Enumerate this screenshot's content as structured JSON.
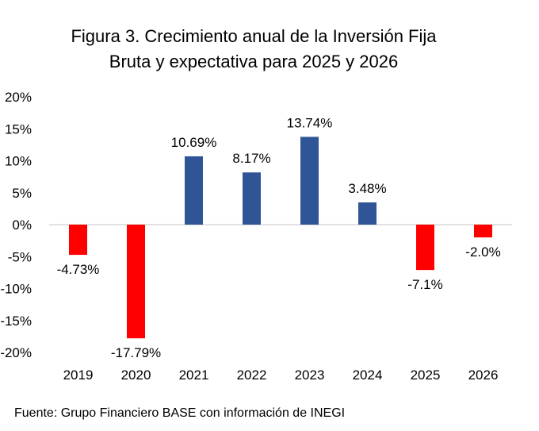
{
  "chart_data": {
    "type": "bar",
    "title_line1": "Figura 3. Crecimiento anual de la Inversión Fija",
    "title_line2": "Bruta y expectativa para 2025 y 2026",
    "categories": [
      "2019",
      "2020",
      "2021",
      "2022",
      "2023",
      "2024",
      "2025",
      "2026"
    ],
    "values": [
      -4.73,
      -17.79,
      10.69,
      8.17,
      13.74,
      3.48,
      -7.1,
      -2.0
    ],
    "data_labels": [
      "-4.73%",
      "-17.79%",
      "10.69%",
      "8.17%",
      "13.74%",
      "3.48%",
      "-7.1%",
      "-2.0%"
    ],
    "ylim": [
      -20,
      20
    ],
    "yticks": [
      20,
      15,
      10,
      5,
      0,
      -5,
      -10,
      -15,
      -20
    ],
    "ytick_labels": [
      "20%",
      "15%",
      "10%",
      "5%",
      "0%",
      "-5%",
      "-10%",
      "-15%",
      "-20%"
    ],
    "xlabel": "",
    "ylabel": "",
    "grid": false,
    "colors": {
      "positive": "#2F5597",
      "negative": "#FF0000",
      "axis": "#D9D9D9"
    }
  },
  "source": "Fuente: Grupo Financiero BASE con información de INEGI"
}
